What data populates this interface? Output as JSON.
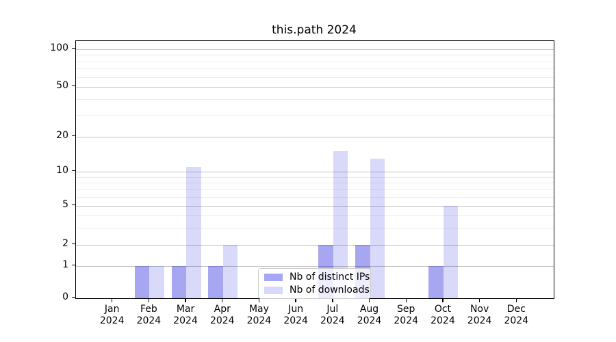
{
  "chart_data": {
    "type": "bar",
    "title": "this.path 2024",
    "xlabel": "",
    "ylabel": "",
    "categories": [
      "Jan",
      "Feb",
      "Mar",
      "Apr",
      "May",
      "Jun",
      "Jul",
      "Aug",
      "Sep",
      "Oct",
      "Nov",
      "Dec"
    ],
    "year_label": "2024",
    "series": [
      {
        "name": "Nb of distinct IPs",
        "color_hex": "#a6a6f7",
        "color_rgba": "rgba(0,0,215,0.35)",
        "values": [
          0,
          1,
          1,
          1,
          0,
          0,
          2,
          2,
          0,
          1,
          0,
          0
        ]
      },
      {
        "name": "Nb of downloads",
        "color_hex": "#d8d8fa",
        "color_rgba": "rgba(0,0,215,0.15)",
        "values": [
          0,
          1,
          11,
          2,
          0,
          0,
          15,
          13,
          0,
          5,
          0,
          0
        ]
      }
    ],
    "scale": "symlog-like (linear 0-1, logarithmic above)",
    "yticks": [
      0,
      1,
      2,
      5,
      10,
      20,
      50,
      100
    ],
    "minor_yticks": [
      3,
      4,
      6,
      7,
      8,
      9,
      30,
      40,
      60,
      70,
      80,
      90
    ],
    "ylim": [
      0,
      113
    ],
    "grid": "horizontal",
    "legend_position": "lower center",
    "legend_title": ""
  },
  "colors": {
    "major_grid": "#c3c3c3",
    "minor_grid": "#ececec",
    "axis_spine": "#000000",
    "legend_border": "#cccccc",
    "background": "#ffffff"
  }
}
